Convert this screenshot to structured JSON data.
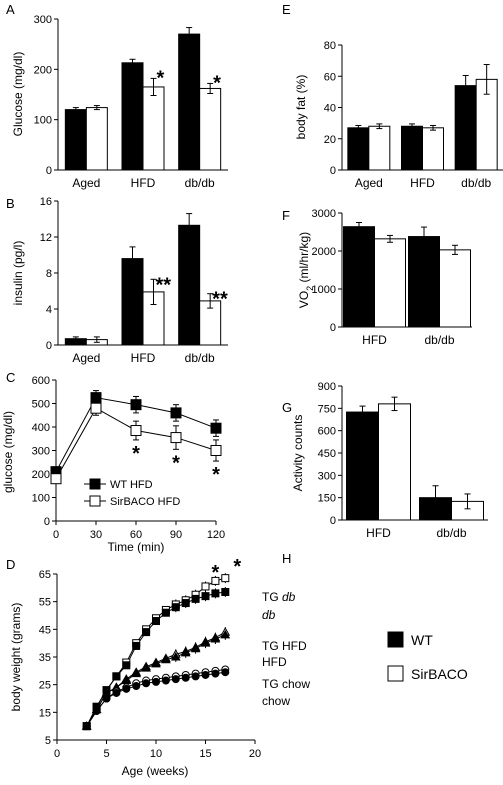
{
  "figure": {
    "panel_letters": [
      "A",
      "B",
      "C",
      "D",
      "E",
      "F",
      "G",
      "H"
    ],
    "legend": {
      "wt_label": "WT",
      "sirbaco_label": "SirBACO",
      "wt_color": "#000000",
      "sirbaco_color": "#ffffff"
    }
  },
  "chart_data": [
    {
      "panel": "A",
      "type": "bar",
      "ylabel": "Glucose (mg/dl)",
      "ylim": [
        0,
        300
      ],
      "yticks": [
        0,
        100,
        200,
        300
      ],
      "categories": [
        "Aged",
        "HFD",
        "db/db"
      ],
      "series": [
        {
          "name": "WT",
          "values": [
            120,
            213,
            270
          ],
          "errors": [
            4,
            7,
            13
          ]
        },
        {
          "name": "SirBACO",
          "values": [
            124,
            165,
            162
          ],
          "errors": [
            4,
            17,
            10
          ]
        }
      ],
      "annotations": [
        "",
        "*",
        "*"
      ]
    },
    {
      "panel": "B",
      "type": "bar",
      "ylabel": "insulin (pg/l)",
      "ylim": [
        0,
        16
      ],
      "yticks": [
        0,
        4,
        8,
        12,
        16
      ],
      "categories": [
        "Aged",
        "HFD",
        "db/db"
      ],
      "series": [
        {
          "name": "WT",
          "values": [
            0.7,
            9.6,
            13.3
          ],
          "errors": [
            0.2,
            1.3,
            1.3
          ]
        },
        {
          "name": "SirBACO",
          "values": [
            0.6,
            5.9,
            4.9
          ],
          "errors": [
            0.3,
            1.4,
            0.8
          ]
        }
      ],
      "annotations": [
        "",
        "**",
        "**"
      ]
    },
    {
      "panel": "C",
      "type": "line",
      "ylabel": "glucose (mg/dl)",
      "xlabel": "Time (min)",
      "xlim": [
        0,
        120
      ],
      "xticks": [
        0,
        30,
        60,
        90,
        120
      ],
      "ylim": [
        0,
        600
      ],
      "yticks": [
        0,
        100,
        200,
        300,
        400,
        500,
        600
      ],
      "x": [
        0,
        30,
        60,
        90,
        120
      ],
      "series": [
        {
          "name": "WT HFD",
          "values": [
            210,
            525,
            495,
            460,
            395
          ],
          "errors": [
            15,
            30,
            35,
            35,
            35
          ]
        },
        {
          "name": "SirBACO HFD",
          "values": [
            180,
            480,
            385,
            355,
            300
          ],
          "errors": [
            15,
            30,
            40,
            50,
            45
          ]
        }
      ],
      "significance": [
        "",
        "",
        "*",
        "*",
        "*"
      ]
    },
    {
      "panel": "D",
      "type": "line",
      "ylabel": "body weight (grams)",
      "xlabel": "Age (weeks)",
      "xlim": [
        0,
        20
      ],
      "xticks": [
        0,
        5,
        10,
        15,
        20
      ],
      "ylim": [
        5,
        65
      ],
      "yticks": [
        5,
        15,
        25,
        35,
        45,
        55,
        65
      ],
      "x": [
        3,
        4,
        5,
        6,
        7,
        8,
        9,
        10,
        11,
        12,
        13,
        14,
        15,
        16,
        17
      ],
      "series": [
        {
          "name": "TG db",
          "label_suffix": "db",
          "marker": "open-square",
          "values": [
            10,
            17,
            23,
            28,
            33,
            40,
            45,
            49,
            52,
            54,
            55.5,
            57.5,
            60.5,
            62.5,
            63.5
          ]
        },
        {
          "name": "db",
          "marker": "filled-square",
          "values": [
            10,
            17,
            23,
            28,
            32,
            39,
            44,
            48,
            51,
            53,
            54.5,
            56,
            57,
            58,
            58.5
          ]
        },
        {
          "name": "TG HFD",
          "marker": "open-triangle",
          "values": [
            10,
            16,
            22,
            24,
            27,
            29.5,
            31.5,
            33,
            34.5,
            36,
            37,
            38.5,
            40.5,
            42,
            44
          ]
        },
        {
          "name": "HFD",
          "marker": "filled-triangle",
          "values": [
            10,
            16,
            22,
            24,
            26.5,
            29,
            31,
            32.5,
            34,
            35,
            36.5,
            38,
            40,
            41.5,
            43
          ]
        },
        {
          "name": "TG chow",
          "marker": "open-circle",
          "values": [
            10,
            15.5,
            20,
            22.5,
            24,
            25.5,
            26.5,
            27,
            27.5,
            28,
            28.5,
            29,
            29.5,
            30,
            30.5
          ]
        },
        {
          "name": "chow",
          "marker": "filled-circle",
          "values": [
            10,
            15.5,
            20,
            22,
            23.5,
            24.5,
            25.5,
            26,
            26.5,
            27,
            27.5,
            28,
            28.5,
            29,
            29.5
          ]
        }
      ],
      "annotations": [
        "*",
        "*"
      ]
    },
    {
      "panel": "E",
      "type": "bar",
      "ylabel": "body fat (%)",
      "ylim": [
        0,
        80
      ],
      "yticks": [
        0,
        20,
        40,
        60,
        80
      ],
      "categories": [
        "Aged",
        "HFD",
        "db/db"
      ],
      "series": [
        {
          "name": "WT",
          "values": [
            27,
            28,
            54
          ],
          "errors": [
            1.5,
            1.5,
            6.5
          ]
        },
        {
          "name": "SirBACO",
          "values": [
            28,
            27,
            58
          ],
          "errors": [
            1.5,
            1.5,
            9.5
          ]
        }
      ]
    },
    {
      "panel": "F",
      "type": "bar",
      "ylabel_main": "VO",
      "ylabel_sub": "2",
      "ylabel_rest": " (ml/hr/kg)",
      "ylim": [
        0,
        3000
      ],
      "yticks": [
        0,
        1000,
        2000,
        3000
      ],
      "categories": [
        "HFD",
        "db/db"
      ],
      "series": [
        {
          "name": "WT",
          "values": [
            2640,
            2380
          ],
          "errors": [
            110,
            250
          ]
        },
        {
          "name": "SirBACO",
          "values": [
            2320,
            2030
          ],
          "errors": [
            90,
            120
          ]
        }
      ]
    },
    {
      "panel": "G",
      "type": "bar",
      "ylabel": "Activity counts",
      "ylim": [
        0,
        900
      ],
      "yticks": [
        0,
        150,
        300,
        450,
        600,
        750,
        900
      ],
      "categories": [
        "HFD",
        "db/db"
      ],
      "series": [
        {
          "name": "WT",
          "values": [
            725,
            150
          ],
          "errors": [
            40,
            80
          ]
        },
        {
          "name": "SirBACO",
          "values": [
            780,
            125
          ],
          "errors": [
            45,
            50
          ]
        }
      ]
    }
  ]
}
